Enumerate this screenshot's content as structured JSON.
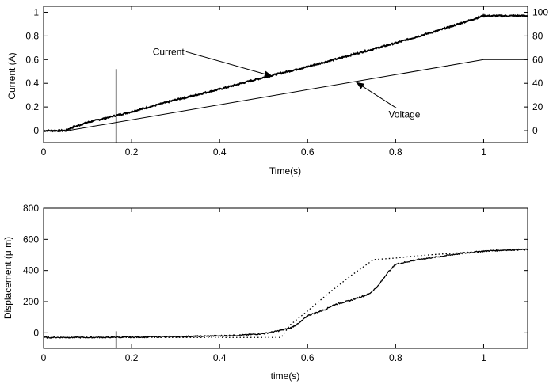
{
  "chart_data": [
    {
      "type": "line",
      "xlabel": "Time(s)",
      "ylabel": "Current (A)",
      "xlim": [
        0,
        1.1
      ],
      "ylim": [
        -0.1,
        1.05
      ],
      "y2lim": [
        -10,
        105
      ],
      "xticks": [
        0,
        0.2,
        0.4,
        0.6,
        0.8,
        1
      ],
      "xtick_labels": [
        "0",
        "0.2",
        "0.4",
        "0.6",
        "0.8",
        "1"
      ],
      "yticks": [
        0,
        0.2,
        0.4,
        0.6,
        0.8,
        1
      ],
      "ytick_labels": [
        "0",
        "0.2",
        "0.4",
        "0.6",
        "0.8",
        "1"
      ],
      "y2ticks": [
        0,
        20,
        40,
        60,
        80,
        100
      ],
      "y2tick_labels": [
        "0",
        "20",
        "40",
        "60",
        "80",
        "100"
      ],
      "grid": false,
      "series": [
        {
          "name": "Current",
          "axis": "left",
          "x": [
            0,
            0.05,
            0.06,
            0.1,
            0.2,
            0.3,
            0.4,
            0.5,
            0.6,
            0.7,
            0.8,
            0.9,
            1.0,
            1.02,
            1.1
          ],
          "y": [
            0.0,
            0.0,
            0.02,
            0.07,
            0.16,
            0.26,
            0.35,
            0.45,
            0.54,
            0.64,
            0.74,
            0.85,
            0.97,
            0.97,
            0.97
          ]
        },
        {
          "name": "Voltage",
          "axis": "right",
          "x": [
            0,
            0.055,
            1.0,
            1.1
          ],
          "y": [
            0,
            0,
            60,
            60
          ]
        }
      ],
      "spike": {
        "x": 0.165,
        "y_top": 0.52,
        "y_bottom": -0.1
      },
      "annotations": [
        {
          "text": "Current",
          "text_x": 0.32,
          "text_y": 0.64,
          "arrow_to_x": 0.52,
          "arrow_to_y": 0.46
        },
        {
          "text": "Voltage",
          "text_x": 0.82,
          "text_y": 0.11,
          "arrow_to_x": 0.71,
          "arrow_to_y": 0.41
        }
      ]
    },
    {
      "type": "line",
      "xlabel": "time(s)",
      "ylabel": "Displacement (μ m)",
      "xlim": [
        0,
        1.1
      ],
      "ylim": [
        -100,
        800
      ],
      "xticks": [
        0,
        0.2,
        0.4,
        0.6,
        0.8,
        1
      ],
      "xtick_labels": [
        "0",
        "0.2",
        "0.4",
        "0.6",
        "0.8",
        "1"
      ],
      "yticks": [
        0,
        200,
        400,
        600,
        800
      ],
      "ytick_labels": [
        "0",
        "200",
        "400",
        "600",
        "800"
      ],
      "grid": false,
      "series": [
        {
          "style": "solid",
          "x": [
            0,
            0.1,
            0.2,
            0.3,
            0.4,
            0.45,
            0.5,
            0.53,
            0.56,
            0.58,
            0.6,
            0.62,
            0.64,
            0.66,
            0.7,
            0.74,
            0.76,
            0.78,
            0.8,
            0.85,
            0.9,
            0.95,
            1.0,
            1.05,
            1.1
          ],
          "y": [
            -30,
            -30,
            -28,
            -25,
            -20,
            -15,
            -5,
            10,
            30,
            60,
            110,
            130,
            150,
            180,
            210,
            250,
            300,
            380,
            440,
            470,
            490,
            510,
            525,
            532,
            535
          ]
        },
        {
          "style": "dotted",
          "x": [
            0,
            0.2,
            0.4,
            0.5,
            0.54,
            0.56,
            0.6,
            0.65,
            0.7,
            0.75,
            0.8,
            0.85,
            0.9,
            1.0,
            1.1
          ],
          "y": [
            -30,
            -30,
            -30,
            -30,
            -30,
            50,
            140,
            260,
            370,
            470,
            480,
            495,
            505,
            525,
            535
          ]
        }
      ],
      "spike": {
        "x": 0.165,
        "y_top": 10,
        "y_bottom": -100
      }
    }
  ]
}
